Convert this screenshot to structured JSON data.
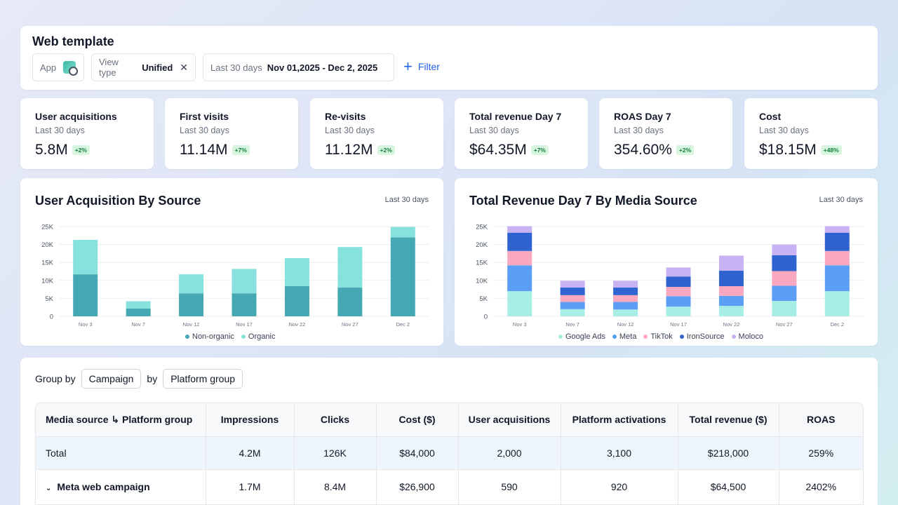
{
  "header": {
    "title": "Web template",
    "app_label": "App",
    "view_type_label": "View type",
    "view_type_value": "Unified",
    "date_label": "Last 30 days",
    "date_value": "Nov 01,2025 - Dec 2, 2025",
    "filter_label": "Filter"
  },
  "kpis": [
    {
      "title": "User acquisitions",
      "sub": "Last 30 days",
      "value": "5.8M",
      "badge": "+2%"
    },
    {
      "title": "First visits",
      "sub": "Last 30 days",
      "value": "11.14M",
      "badge": "+7%"
    },
    {
      "title": "Re-visits",
      "sub": "Last 30 days",
      "value": "11.12M",
      "badge": "+2%"
    },
    {
      "title": "Total revenue Day 7",
      "sub": "Last 30 days",
      "value": "$64.35M",
      "badge": "+7%"
    },
    {
      "title": "ROAS Day 7",
      "sub": "Last 30 days",
      "value": "354.60%",
      "badge": "+2%"
    },
    {
      "title": "Cost",
      "sub": "Last 30 days",
      "value": "$18.15M",
      "badge": "+48%"
    }
  ],
  "colors": {
    "non_organic": "#45a8b2",
    "organic": "#87e1dd",
    "google_ads": "#a8eee5",
    "meta": "#5b9ef6",
    "tiktok": "#f9a8bf",
    "ironsource": "#2e63d0",
    "moloco": "#c9b2f3",
    "accent": "#2563eb"
  },
  "chart_data": [
    {
      "type": "bar",
      "stacked": true,
      "title": "User Acquisition By Source",
      "range_label": "Last 30 days",
      "categories": [
        "Nov 3",
        "Nov 7",
        "Nov 12",
        "Nov 17",
        "Nov 22",
        "Nov 27",
        "Dec 2"
      ],
      "y_ticks": [
        "0",
        "5K",
        "10K",
        "15K",
        "20K",
        "25K"
      ],
      "ylim": [
        0,
        25000
      ],
      "grid": true,
      "legend_position": "bottom",
      "series": [
        {
          "name": "Non-organic",
          "values": [
            11700,
            2200,
            6400,
            6400,
            8400,
            8000,
            22000
          ]
        },
        {
          "name": "Organic",
          "values": [
            9600,
            2000,
            5300,
            6800,
            7800,
            11300,
            2900
          ]
        }
      ]
    },
    {
      "type": "bar",
      "stacked": true,
      "title": "Total Revenue Day 7 By Media Source",
      "range_label": "Last 30 days",
      "categories": [
        "Nov 3",
        "Nov 7",
        "Nov 12",
        "Nov 17",
        "Nov 22",
        "Nov 27",
        "Dec 2"
      ],
      "y_ticks": [
        "0",
        "5K",
        "10K",
        "15K",
        "20K",
        "25K"
      ],
      "ylim": [
        0,
        25000
      ],
      "grid": true,
      "legend_position": "bottom",
      "series": [
        {
          "name": "Google Ads",
          "values": [
            7000,
            2000,
            1900,
            2700,
            2900,
            4300,
            7000
          ]
        },
        {
          "name": "Meta",
          "values": [
            7200,
            2000,
            2100,
            2900,
            2800,
            4200,
            7200
          ]
        },
        {
          "name": "TikTok",
          "values": [
            4000,
            1900,
            1900,
            2600,
            2700,
            4100,
            4000
          ]
        },
        {
          "name": "IronSource",
          "values": [
            5100,
            2100,
            2100,
            2900,
            4300,
            4400,
            5100
          ]
        },
        {
          "name": "Moloco",
          "values": [
            1800,
            1900,
            1900,
            2500,
            4200,
            3000,
            1800
          ]
        }
      ]
    }
  ],
  "table": {
    "group_by_label": "Group by",
    "group_by_value": "Campaign",
    "by_label": "by",
    "by_value": "Platform group",
    "columns": [
      "Media source ↳ Platform group",
      "Impressions",
      "Clicks",
      "Cost ($)",
      "User acquisitions",
      "Platform activations",
      "Total revenue ($)",
      "ROAS"
    ],
    "total_row": [
      "Total",
      "4.2M",
      "126K",
      "$84,000",
      "2,000",
      "3,100",
      "$218,000",
      "259%"
    ],
    "group_row": [
      "Meta web campaign",
      "1.7M",
      "8.4M",
      "$26,900",
      "590",
      "920",
      "$64,500",
      "2402%"
    ]
  }
}
